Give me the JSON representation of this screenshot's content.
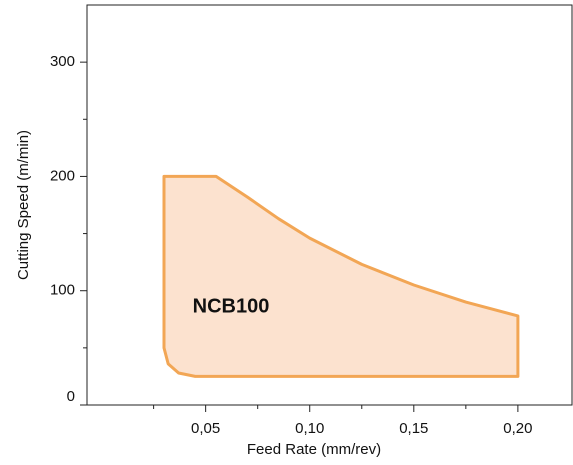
{
  "chart_data": {
    "type": "area",
    "xlabel": "Feed Rate (mm/rev)",
    "ylabel": "Cutting Speed (m/min)",
    "annotation": "NCB100",
    "xlim": [
      -0.007,
      0.226
    ],
    "ylim": [
      0,
      350
    ],
    "xticks": [
      {
        "value": 0.05,
        "label": "0,05"
      },
      {
        "value": 0.1,
        "label": "0,10"
      },
      {
        "value": 0.15,
        "label": "0,15"
      },
      {
        "value": 0.2,
        "label": "0,20"
      }
    ],
    "xminorticks": [
      0.025,
      0.075,
      0.125,
      0.175
    ],
    "yticks": [
      0,
      100,
      200,
      300
    ],
    "yminorticks": [
      50,
      150,
      250
    ],
    "series": [
      {
        "color": "#f2a655",
        "fill": "#fce2cf",
        "x": [
          0.03,
          0.055,
          0.07,
          0.085,
          0.1,
          0.125,
          0.15,
          0.175,
          0.2,
          0.2,
          0.045,
          0.037,
          0.032,
          0.03
        ],
        "values": [
          200,
          200,
          182,
          163,
          146,
          123,
          105,
          90,
          78,
          25,
          25,
          28,
          36,
          50
        ]
      }
    ]
  }
}
